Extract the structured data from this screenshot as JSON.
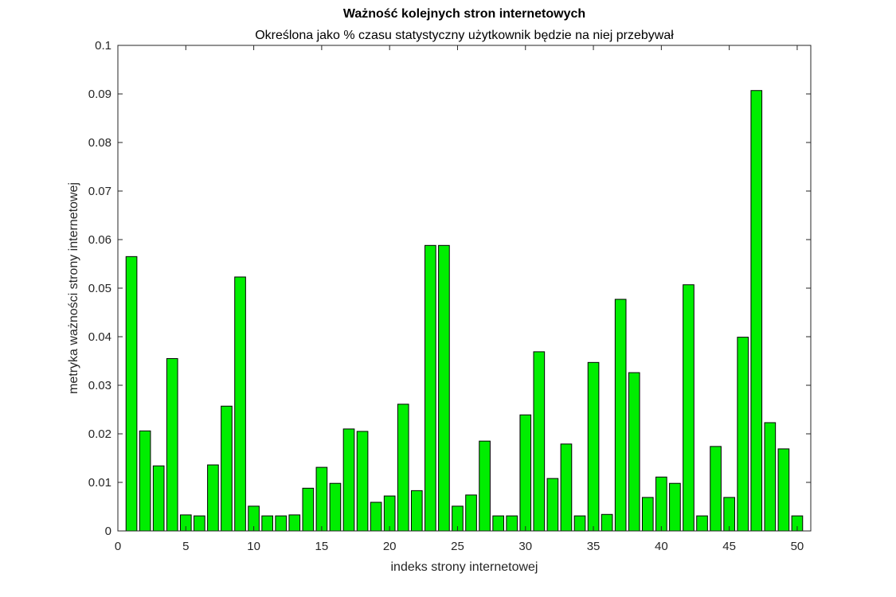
{
  "chart_data": {
    "type": "bar",
    "title": "Ważność kolejnych stron internetowych",
    "subtitle": "Określona jako % czasu statystyczny użytkownik będzie na niej przebywał",
    "xlabel": "indeks strony internetowej",
    "ylabel": "metryka ważności strony internetowej",
    "xlim": [
      0,
      51
    ],
    "ylim": [
      0,
      0.1
    ],
    "x_ticks": [
      0,
      5,
      10,
      15,
      20,
      25,
      30,
      35,
      40,
      45,
      50
    ],
    "y_ticks": [
      0,
      0.01,
      0.02,
      0.03,
      0.04,
      0.05,
      0.06,
      0.07,
      0.08,
      0.09,
      0.1
    ],
    "x_tick_labels": [
      "0",
      "5",
      "10",
      "15",
      "20",
      "25",
      "30",
      "35",
      "40",
      "45",
      "50"
    ],
    "y_tick_labels": [
      "0",
      "0.01",
      "0.02",
      "0.03",
      "0.04",
      "0.05",
      "0.06",
      "0.07",
      "0.08",
      "0.09",
      "0.1"
    ],
    "bar_color": "#00ee00",
    "edge_color": "#000000",
    "grid": false,
    "x": [
      1,
      2,
      3,
      4,
      5,
      6,
      7,
      8,
      9,
      10,
      11,
      12,
      13,
      14,
      15,
      16,
      17,
      18,
      19,
      20,
      21,
      22,
      23,
      24,
      25,
      26,
      27,
      28,
      29,
      30,
      31,
      32,
      33,
      34,
      35,
      36,
      37,
      38,
      39,
      40,
      41,
      42,
      43,
      44,
      45,
      46,
      47,
      48,
      49,
      50
    ],
    "values": [
      0.0565,
      0.0206,
      0.0134,
      0.0355,
      0.0033,
      0.0031,
      0.0136,
      0.0257,
      0.0523,
      0.0051,
      0.0031,
      0.0031,
      0.0033,
      0.0088,
      0.0131,
      0.0098,
      0.021,
      0.0205,
      0.0059,
      0.0072,
      0.0261,
      0.0083,
      0.0588,
      0.0588,
      0.0051,
      0.0074,
      0.0185,
      0.0031,
      0.0031,
      0.0239,
      0.0369,
      0.0108,
      0.0179,
      0.0031,
      0.0347,
      0.0034,
      0.0477,
      0.0326,
      0.0069,
      0.0111,
      0.0098,
      0.0507,
      0.0031,
      0.0174,
      0.0069,
      0.0399,
      0.0907,
      0.0223,
      0.0169,
      0.0031
    ]
  }
}
